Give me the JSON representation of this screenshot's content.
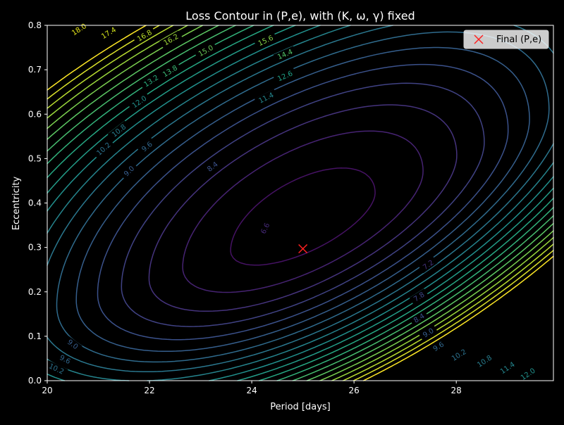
{
  "chart_data": {
    "type": "contour",
    "title": "Loss Contour in (P,e), with (K, ω, γ) fixed",
    "xlabel": "Period [days]",
    "ylabel": "Eccentricity",
    "xlim": [
      20,
      29.9
    ],
    "ylim": [
      0,
      0.8
    ],
    "xticks": [
      "20",
      "22",
      "24",
      "26",
      "28"
    ],
    "yticks": [
      "0.0",
      "0.1",
      "0.2",
      "0.3",
      "0.4",
      "0.5",
      "0.6",
      "0.7",
      "0.8"
    ],
    "grid": false,
    "legend": {
      "position": "top-right",
      "entries": [
        {
          "label": "Final (P,e)",
          "marker": "x",
          "color": "#ff2020"
        }
      ]
    },
    "final_point": {
      "x": 25.0,
      "y": 0.297
    },
    "contour_levels": [
      "6.6",
      "7.2",
      "7.8",
      "8.4",
      "9.0",
      "9.6",
      "10.2",
      "10.8",
      "11.4",
      "12.0",
      "12.6",
      "13.2",
      "13.8",
      "14.4",
      "15.0",
      "15.6",
      "16.2",
      "16.8",
      "17.4",
      "18.0"
    ],
    "contour_labels": [
      {
        "text": "6.6",
        "x": 24.26,
        "y": 0.343,
        "color": "#472a7a"
      },
      {
        "text": "7.2",
        "x": 27.45,
        "y": 0.261,
        "color": "#46337f"
      },
      {
        "text": "7.8",
        "x": 27.27,
        "y": 0.189,
        "color": "#3f4788"
      },
      {
        "text": "8.4",
        "x": 27.27,
        "y": 0.141,
        "color": "#3b528b"
      },
      {
        "text": "9.0",
        "x": 27.45,
        "y": 0.108,
        "color": "#365d8d"
      },
      {
        "text": "9.6",
        "x": 27.65,
        "y": 0.077,
        "color": "#31688e"
      },
      {
        "text": "10.2",
        "x": 28.05,
        "y": 0.058,
        "color": "#2c728e"
      },
      {
        "text": "10.8",
        "x": 28.55,
        "y": 0.044,
        "color": "#287d8e"
      },
      {
        "text": "11.4",
        "x": 29.0,
        "y": 0.029,
        "color": "#24868e"
      },
      {
        "text": "12.0",
        "x": 29.4,
        "y": 0.015,
        "color": "#21918c"
      },
      {
        "text": "9.0",
        "x": 20.5,
        "y": 0.082,
        "color": "#365d8d"
      },
      {
        "text": "9.6",
        "x": 20.35,
        "y": 0.048,
        "color": "#31688e"
      },
      {
        "text": "10.2",
        "x": 20.18,
        "y": 0.027,
        "color": "#2c728e"
      },
      {
        "text": "9.0",
        "x": 21.6,
        "y": 0.472,
        "color": "#365d8d"
      },
      {
        "text": "8.4",
        "x": 23.23,
        "y": 0.482,
        "color": "#3b528b"
      },
      {
        "text": "9.6",
        "x": 21.95,
        "y": 0.527,
        "color": "#31688e"
      },
      {
        "text": "10.2",
        "x": 21.1,
        "y": 0.522,
        "color": "#2c728e"
      },
      {
        "text": "10.8",
        "x": 21.4,
        "y": 0.563,
        "color": "#287d8e"
      },
      {
        "text": "12.0",
        "x": 21.8,
        "y": 0.628,
        "color": "#21918c"
      },
      {
        "text": "11.4",
        "x": 24.28,
        "y": 0.637,
        "color": "#24868e"
      },
      {
        "text": "12.6",
        "x": 24.65,
        "y": 0.686,
        "color": "#1fa187"
      },
      {
        "text": "13.2",
        "x": 22.03,
        "y": 0.675,
        "color": "#2ab07f"
      },
      {
        "text": "13.8",
        "x": 22.4,
        "y": 0.697,
        "color": "#3bbb75"
      },
      {
        "text": "14.4",
        "x": 24.65,
        "y": 0.735,
        "color": "#52c569"
      },
      {
        "text": "15.0",
        "x": 23.1,
        "y": 0.743,
        "color": "#6ccd5a"
      },
      {
        "text": "15.6",
        "x": 24.27,
        "y": 0.766,
        "color": "#86d549"
      },
      {
        "text": "16.2",
        "x": 22.42,
        "y": 0.768,
        "color": "#a0da39"
      },
      {
        "text": "16.8",
        "x": 21.9,
        "y": 0.777,
        "color": "#bade28"
      },
      {
        "text": "17.4",
        "x": 21.2,
        "y": 0.783,
        "color": "#d2e21b"
      },
      {
        "text": "18.0",
        "x": 20.62,
        "y": 0.791,
        "color": "#e5e419"
      }
    ]
  }
}
